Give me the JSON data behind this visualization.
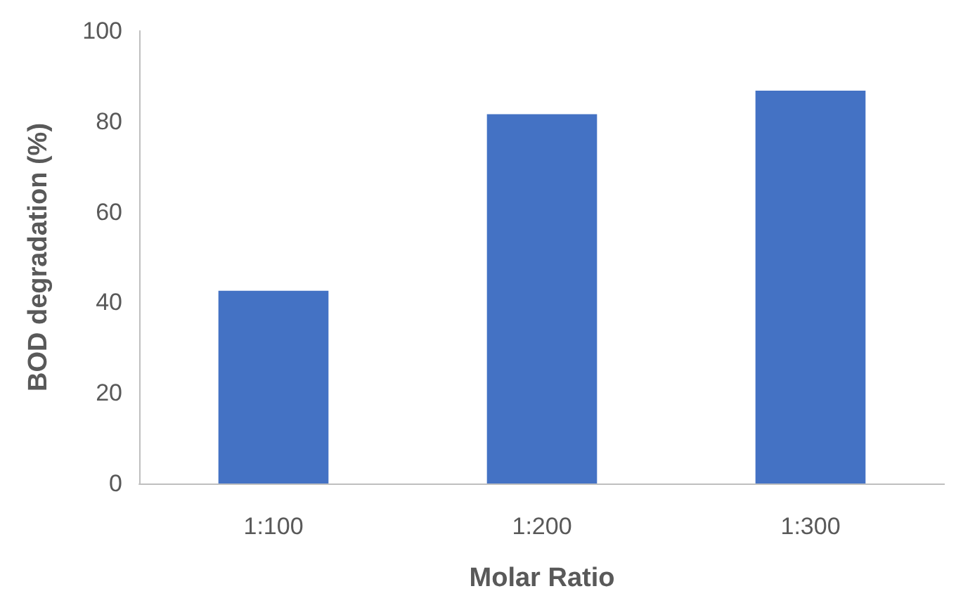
{
  "chart_data": {
    "type": "bar",
    "xlabel": "Molar Ratio",
    "ylabel": "BOD degradation (%)",
    "categories": [
      "1:100",
      "1:200",
      "1:300"
    ],
    "values": [
      42.6,
      81.6,
      86.8
    ],
    "color": "#4472c4",
    "ylim": [
      0,
      100
    ],
    "yticks": [
      0,
      20,
      40,
      60,
      80,
      100
    ],
    "grid": false
  }
}
